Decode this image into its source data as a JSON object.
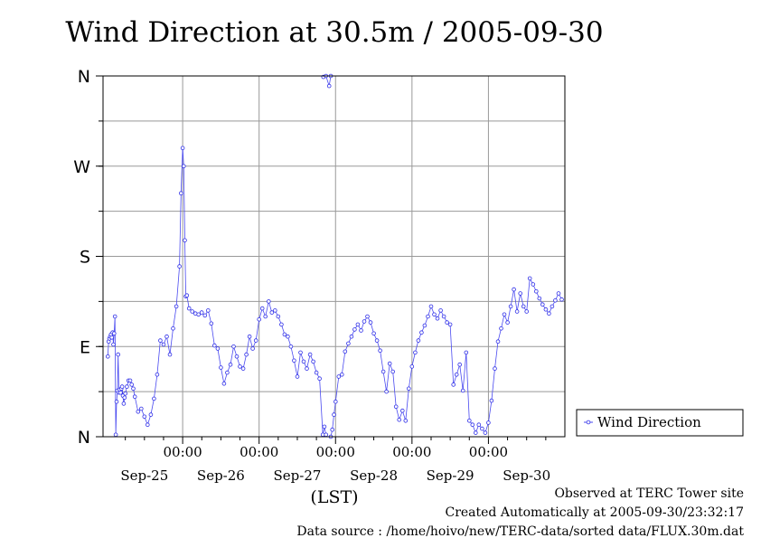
{
  "chart_data": {
    "type": "line",
    "title": "Wind Direction at 30.5m / 2005-09-30",
    "xlabel": "(LST)",
    "ylabel": "",
    "y_tick_labels": [
      "N",
      "E",
      "S",
      "W",
      "N"
    ],
    "y_tick_values": [
      0,
      90,
      180,
      270,
      360
    ],
    "ylim": [
      0,
      360
    ],
    "x_tick_labels": [
      "00:00",
      "00:00",
      "00:00",
      "00:00",
      "00:00"
    ],
    "x_tick_values": [
      "2005-09-26 00:00",
      "2005-09-27 00:00",
      "2005-09-28 00:00",
      "2005-09-29 00:00",
      "2005-09-30 00:00"
    ],
    "x_date_labels": [
      "Sep-25",
      "Sep-26",
      "Sep-27",
      "Sep-28",
      "Sep-29",
      "Sep-30"
    ],
    "xlim": [
      "2005-09-24 23:00",
      "2005-10-01 00:00"
    ],
    "grid": true,
    "legend_position": "right",
    "series": [
      {
        "name": "Wind Direction",
        "color": "#3030e8",
        "segments": [
          [
            [
              "2005-09-25 00:30",
              80
            ],
            [
              "2005-09-25 00:45",
              95
            ],
            [
              "2005-09-25 01:00",
              98
            ],
            [
              "2005-09-25 01:15",
              100
            ],
            [
              "2005-09-25 01:30",
              102
            ],
            [
              "2005-09-25 01:45",
              99
            ],
            [
              "2005-09-25 02:00",
              104
            ],
            [
              "2005-09-25 02:15",
              92
            ],
            [
              "2005-09-25 02:30",
              103
            ],
            [
              "2005-09-25 02:45",
              120
            ],
            [
              "2005-09-25 03:00",
              2
            ],
            [
              "2005-09-25 03:15",
              35
            ],
            [
              "2005-09-25 03:30",
              46
            ],
            [
              "2005-09-25 03:45",
              82
            ],
            [
              "2005-09-25 04:00",
              44
            ],
            [
              "2005-09-25 04:15",
              47
            ],
            [
              "2005-09-25 04:30",
              44
            ],
            [
              "2005-09-25 04:45",
              48
            ],
            [
              "2005-09-25 05:00",
              50
            ],
            [
              "2005-09-25 05:15",
              41
            ],
            [
              "2005-09-25 05:30",
              33
            ],
            [
              "2005-09-25 05:45",
              39
            ],
            [
              "2005-09-25 06:00",
              43
            ],
            [
              "2005-09-25 06:30",
              50
            ],
            [
              "2005-09-25 07:00",
              56
            ],
            [
              "2005-09-25 07:30",
              56
            ],
            [
              "2005-09-25 08:00",
              52
            ],
            [
              "2005-09-25 08:30",
              48
            ],
            [
              "2005-09-25 09:00",
              40
            ],
            [
              "2005-09-25 10:00",
              25
            ],
            [
              "2005-09-25 11:00",
              28
            ],
            [
              "2005-09-25 12:00",
              20
            ],
            [
              "2005-09-25 13:00",
              12
            ],
            [
              "2005-09-25 14:00",
              22
            ],
            [
              "2005-09-25 15:00",
              38
            ],
            [
              "2005-09-25 16:00",
              62
            ],
            [
              "2005-09-25 17:00",
              96
            ],
            [
              "2005-09-25 18:00",
              92
            ],
            [
              "2005-09-25 19:00",
              100
            ],
            [
              "2005-09-25 20:00",
              82
            ],
            [
              "2005-09-25 21:00",
              108
            ],
            [
              "2005-09-25 22:00",
              130
            ],
            [
              "2005-09-25 23:00",
              170
            ],
            [
              "2005-09-25 23:30",
              243
            ],
            [
              "2005-09-26 00:00",
              288
            ],
            [
              "2005-09-26 00:20",
              270
            ],
            [
              "2005-09-26 00:40",
              196
            ],
            [
              "2005-09-26 01:00",
              140
            ],
            [
              "2005-09-26 01:20",
              141
            ],
            [
              "2005-09-26 02:00",
              128
            ],
            [
              "2005-09-26 03:00",
              125
            ],
            [
              "2005-09-26 04:00",
              123
            ],
            [
              "2005-09-26 05:00",
              122
            ],
            [
              "2005-09-26 06:00",
              124
            ],
            [
              "2005-09-26 07:00",
              121
            ],
            [
              "2005-09-26 08:00",
              126
            ],
            [
              "2005-09-26 09:00",
              113
            ],
            [
              "2005-09-26 10:00",
              91
            ],
            [
              "2005-09-26 11:00",
              88
            ],
            [
              "2005-09-26 12:00",
              69
            ],
            [
              "2005-09-26 13:00",
              53
            ],
            [
              "2005-09-26 14:00",
              64
            ],
            [
              "2005-09-26 15:00",
              72
            ],
            [
              "2005-09-26 16:00",
              90
            ],
            [
              "2005-09-26 17:00",
              80
            ],
            [
              "2005-09-26 18:00",
              70
            ],
            [
              "2005-09-26 19:00",
              68
            ],
            [
              "2005-09-26 20:00",
              82
            ],
            [
              "2005-09-26 21:00",
              100
            ],
            [
              "2005-09-26 22:00",
              88
            ],
            [
              "2005-09-26 23:00",
              96
            ],
            [
              "2005-09-27 00:00",
              117
            ],
            [
              "2005-09-27 01:00",
              128
            ],
            [
              "2005-09-27 02:00",
              120
            ],
            [
              "2005-09-27 03:00",
              135
            ],
            [
              "2005-09-27 04:00",
              124
            ],
            [
              "2005-09-27 05:00",
              126
            ],
            [
              "2005-09-27 06:00",
              120
            ],
            [
              "2005-09-27 07:00",
              112
            ],
            [
              "2005-09-27 08:00",
              102
            ],
            [
              "2005-09-27 09:00",
              100
            ],
            [
              "2005-09-27 10:00",
              90
            ],
            [
              "2005-09-27 11:00",
              76
            ],
            [
              "2005-09-27 12:00",
              60
            ],
            [
              "2005-09-27 13:00",
              84
            ],
            [
              "2005-09-27 14:00",
              75
            ],
            [
              "2005-09-27 15:00",
              68
            ],
            [
              "2005-09-27 16:00",
              82
            ],
            [
              "2005-09-27 17:00",
              75
            ],
            [
              "2005-09-27 18:00",
              64
            ],
            [
              "2005-09-27 19:00",
              58
            ],
            [
              "2005-09-27 20:00",
              2
            ],
            [
              "2005-09-27 20:30",
              10
            ],
            [
              "2005-09-27 21:00",
              2
            ]
          ],
          [
            [
              "2005-09-27 20:10",
              359
            ],
            [
              "2005-09-27 21:00",
              360
            ],
            [
              "2005-09-27 22:00",
              350
            ],
            [
              "2005-09-27 22:30",
              360
            ]
          ],
          [
            [
              "2005-09-27 22:30",
              0
            ],
            [
              "2005-09-27 23:00",
              7
            ],
            [
              "2005-09-27 23:30",
              22
            ],
            [
              "2005-09-28 00:00",
              35
            ],
            [
              "2005-09-28 01:00",
              60
            ],
            [
              "2005-09-28 02:00",
              62
            ],
            [
              "2005-09-28 03:00",
              85
            ],
            [
              "2005-09-28 04:00",
              93
            ],
            [
              "2005-09-28 05:00",
              100
            ],
            [
              "2005-09-28 06:00",
              107
            ],
            [
              "2005-09-28 07:00",
              112
            ],
            [
              "2005-09-28 08:00",
              106
            ],
            [
              "2005-09-28 09:00",
              115
            ],
            [
              "2005-09-28 10:00",
              120
            ],
            [
              "2005-09-28 11:00",
              114
            ],
            [
              "2005-09-28 12:00",
              103
            ],
            [
              "2005-09-28 13:00",
              96
            ],
            [
              "2005-09-28 14:00",
              86
            ],
            [
              "2005-09-28 15:00",
              65
            ],
            [
              "2005-09-28 16:00",
              45
            ],
            [
              "2005-09-28 17:00",
              73
            ],
            [
              "2005-09-28 18:00",
              65
            ],
            [
              "2005-09-28 19:00",
              30
            ],
            [
              "2005-09-28 20:00",
              17
            ],
            [
              "2005-09-28 21:00",
              26
            ],
            [
              "2005-09-28 22:00",
              16
            ],
            [
              "2005-09-28 23:00",
              48
            ],
            [
              "2005-09-29 00:00",
              70
            ],
            [
              "2005-09-29 01:00",
              84
            ],
            [
              "2005-09-29 02:00",
              96
            ],
            [
              "2005-09-29 03:00",
              104
            ],
            [
              "2005-09-29 04:00",
              111
            ],
            [
              "2005-09-29 05:00",
              120
            ],
            [
              "2005-09-29 06:00",
              130
            ],
            [
              "2005-09-29 07:00",
              122
            ],
            [
              "2005-09-29 08:00",
              118
            ],
            [
              "2005-09-29 09:00",
              126
            ],
            [
              "2005-09-29 10:00",
              120
            ],
            [
              "2005-09-29 11:00",
              114
            ],
            [
              "2005-09-29 12:00",
              112
            ],
            [
              "2005-09-29 13:00",
              52
            ],
            [
              "2005-09-29 14:00",
              62
            ],
            [
              "2005-09-29 15:00",
              72
            ],
            [
              "2005-09-29 16:00",
              46
            ],
            [
              "2005-09-29 17:00",
              84
            ],
            [
              "2005-09-29 18:00",
              16
            ],
            [
              "2005-09-29 19:00",
              12
            ],
            [
              "2005-09-29 20:00",
              4
            ],
            [
              "2005-09-29 21:00",
              12
            ],
            [
              "2005-09-29 22:00",
              8
            ],
            [
              "2005-09-29 23:00",
              4
            ],
            [
              "2005-09-30 00:00",
              14
            ],
            [
              "2005-09-30 01:00",
              36
            ],
            [
              "2005-09-30 02:00",
              68
            ],
            [
              "2005-09-30 03:00",
              95
            ],
            [
              "2005-09-30 04:00",
              108
            ],
            [
              "2005-09-30 05:00",
              122
            ],
            [
              "2005-09-30 06:00",
              114
            ],
            [
              "2005-09-30 07:00",
              130
            ],
            [
              "2005-09-30 08:00",
              147
            ],
            [
              "2005-09-30 09:00",
              125
            ],
            [
              "2005-09-30 10:00",
              143
            ],
            [
              "2005-09-30 11:00",
              130
            ],
            [
              "2005-09-30 12:00",
              125
            ],
            [
              "2005-09-30 13:00",
              158
            ],
            [
              "2005-09-30 14:00",
              152
            ],
            [
              "2005-09-30 15:00",
              145
            ],
            [
              "2005-09-30 16:00",
              138
            ],
            [
              "2005-09-30 17:00",
              132
            ],
            [
              "2005-09-30 18:00",
              127
            ],
            [
              "2005-09-30 19:00",
              123
            ],
            [
              "2005-09-30 20:00",
              130
            ],
            [
              "2005-09-30 21:00",
              136
            ],
            [
              "2005-09-30 22:00",
              143
            ],
            [
              "2005-09-30 23:00",
              137
            ]
          ]
        ]
      }
    ],
    "notes": [
      "Observed at TERC Tower site",
      "Created Automatically at 2005-09-30/23:32:17",
      "Data source : /home/hoivo/new/TERC-data/sorted  data/FLUX.30m.dat"
    ]
  }
}
